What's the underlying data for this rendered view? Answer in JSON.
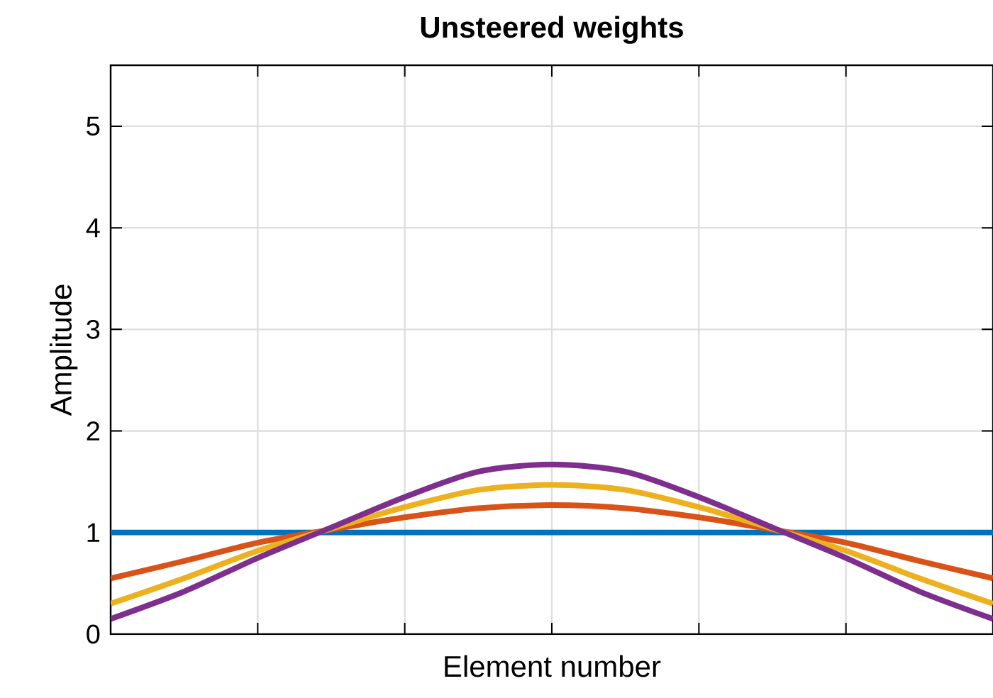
{
  "chart_data": {
    "type": "line",
    "title": "Unsteered weights",
    "xlabel": "Element number",
    "ylabel": "Amplitude",
    "categories": [
      null,
      null,
      null,
      null,
      null,
      null,
      null,
      null,
      null,
      null,
      null,
      null,
      null
    ],
    "series": [
      {
        "color": "#0072bd",
        "values": [
          1,
          1,
          1,
          1,
          1,
          1,
          1,
          1,
          1,
          1,
          1,
          1,
          1
        ]
      },
      {
        "color": "#d95319",
        "values": [
          0.55,
          0.72,
          0.9,
          1.03,
          1.15,
          1.24,
          1.27,
          1.24,
          1.15,
          1.03,
          0.9,
          0.72,
          0.55
        ]
      },
      {
        "color": "#edb120",
        "values": [
          0.3,
          0.55,
          0.82,
          1.04,
          1.25,
          1.42,
          1.47,
          1.42,
          1.25,
          1.04,
          0.82,
          0.55,
          0.3
        ]
      },
      {
        "color": "#7e2f8e",
        "values": [
          0.15,
          0.42,
          0.75,
          1.05,
          1.35,
          1.6,
          1.67,
          1.6,
          1.35,
          1.05,
          0.75,
          0.42,
          0.15
        ]
      }
    ],
    "ylim": [
      0,
      5.6
    ],
    "yticks": [
      0,
      1,
      2,
      3,
      4,
      5
    ],
    "grid": true,
    "marker": "none",
    "line_style": "solid"
  }
}
